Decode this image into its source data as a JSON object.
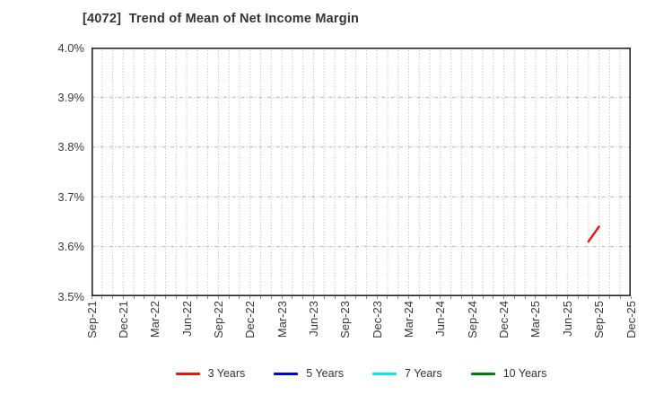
{
  "chart_data": {
    "type": "line",
    "title": "[4072]  Trend of Mean of Net Income Margin",
    "x_axis": {
      "tick_labels": [
        "Sep-21",
        "Dec-21",
        "Mar-22",
        "Jun-22",
        "Sep-22",
        "Dec-22",
        "Mar-23",
        "Jun-23",
        "Sep-23",
        "Dec-23",
        "Mar-24",
        "Jun-24",
        "Sep-24",
        "Dec-24",
        "Mar-25",
        "Jun-25",
        "Sep-25",
        "Dec-25"
      ],
      "months_total": 51,
      "months_per_tick": 3,
      "grid_style": "dotted-monthly"
    },
    "y_axis": {
      "tick_labels": [
        "4.0%",
        "3.9%",
        "3.8%",
        "3.7%",
        "3.6%",
        "3.5%"
      ],
      "tick_values": [
        4.0,
        3.9,
        3.8,
        3.7,
        3.6,
        3.5
      ],
      "min": 3.5,
      "max": 4.0,
      "unit": "%",
      "grid_style": "dashed"
    },
    "series": [
      {
        "name": "3 Years",
        "color": "#ee1111",
        "points": [
          {
            "label": "Aug-25",
            "month_index": 47,
            "value": 3.61
          },
          {
            "label": "Sep-25",
            "month_index": 48,
            "value": 3.64
          }
        ]
      },
      {
        "name": "5 Years",
        "color": "#0000ee",
        "points": []
      },
      {
        "name": "7 Years",
        "color": "#00e8e8",
        "points": []
      },
      {
        "name": "10 Years",
        "color": "#008000",
        "points": []
      }
    ],
    "legend_position": "bottom-center"
  },
  "legend": {
    "items": [
      {
        "label": "3 Years",
        "color": "#ee1111"
      },
      {
        "label": "5 Years",
        "color": "#0000ee"
      },
      {
        "label": "7 Years",
        "color": "#00e8e8"
      },
      {
        "label": "10 Years",
        "color": "#008000"
      }
    ]
  },
  "colors": {
    "plot_border": "#262626",
    "grid": "#b3b3b3",
    "text": "#333333",
    "background": "#ffffff"
  }
}
